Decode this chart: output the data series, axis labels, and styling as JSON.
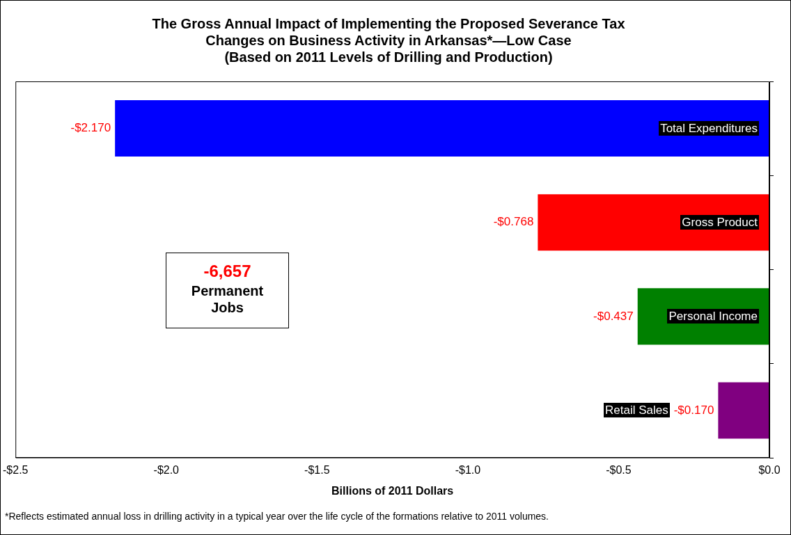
{
  "chart_data": {
    "type": "bar",
    "orientation": "horizontal",
    "title": "The Gross Annual Impact of Implementing the Proposed Severance Tax\nChanges on Business Activity in Arkansas*—Low Case",
    "subtitle": "(Based on 2011 Levels of Drilling and Production)",
    "xlabel": "Billions of 2011 Dollars",
    "categories": [
      "Total Expenditures",
      "Gross Product",
      "Personal Income",
      "Retail Sales"
    ],
    "values": [
      -2.17,
      -0.768,
      -0.437,
      -0.17
    ],
    "colors": [
      "#0000ff",
      "#ff0000",
      "#008000",
      "#800080"
    ],
    "value_labels": [
      "-$2.170",
      "-$0.768",
      "-$0.437",
      "-$0.170"
    ],
    "xlim": [
      -2.5,
      0
    ],
    "xticks": [
      {
        "value": -2.5,
        "label": "-$2.5"
      },
      {
        "value": -2,
        "label": "-$2.0"
      },
      {
        "value": -1.5,
        "label": "-$1.5"
      },
      {
        "value": -1,
        "label": "-$1.0"
      },
      {
        "value": -0.5,
        "label": "-$0.5"
      },
      {
        "value": 0,
        "label": "$0.0"
      }
    ],
    "grid": false,
    "legend": false,
    "annotations": [
      "-6,657",
      "Permanent Jobs",
      "*Reflects estimated annual loss in drilling activity in a typical year over the life cycle of the formations relative to 2011 volumes."
    ]
  }
}
